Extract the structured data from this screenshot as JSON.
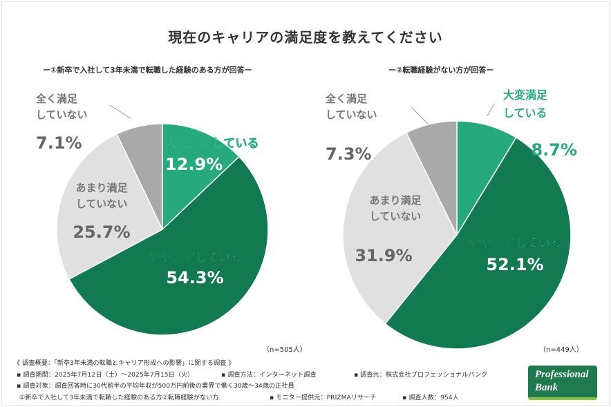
{
  "title": "現在のキャリアの満足度を教えてください",
  "colors": {
    "very_satisfied": "#27a97e",
    "somewhat_satisfied": "#127a51",
    "not_very_satisfied": "#e0e0e0",
    "not_at_all": "#a9a9a9",
    "text_dark": "#333333",
    "text_gray": "#777777",
    "pct_gray": "#666666",
    "accent_green": "#27a97e"
  },
  "chart_data": [
    {
      "type": "pie",
      "subtitle": "ー①新卒で入社して3年未満で転職した経験のある方が回答ー",
      "n_label": "（n=505人）",
      "slices": [
        {
          "key": "very_satisfied",
          "label_lines": [
            "大変満足している"
          ],
          "value": 12.9,
          "display": "12.9%"
        },
        {
          "key": "somewhat_satisfied",
          "label_lines": [
            "やや満足している"
          ],
          "value": 54.3,
          "display": "54.3%"
        },
        {
          "key": "not_very_satisfied",
          "label_lines": [
            "あまり満足",
            "していない"
          ],
          "value": 25.7,
          "display": "25.7%"
        },
        {
          "key": "not_at_all",
          "label_lines": [
            "全く満足",
            "していない"
          ],
          "value": 7.1,
          "display": "7.1%"
        }
      ]
    },
    {
      "type": "pie",
      "subtitle": "ー②転職経験がない方が回答ー",
      "n_label": "（n=449人）",
      "slices": [
        {
          "key": "very_satisfied",
          "label_lines": [
            "大変満足",
            "している"
          ],
          "value": 8.7,
          "display": "8.7%"
        },
        {
          "key": "somewhat_satisfied",
          "label_lines": [
            "やや満足している"
          ],
          "value": 52.1,
          "display": "52.1%"
        },
        {
          "key": "not_very_satisfied",
          "label_lines": [
            "あまり満足",
            "していない"
          ],
          "value": 31.9,
          "display": "31.9%"
        },
        {
          "key": "not_at_all",
          "label_lines": [
            "全く満足",
            "していない"
          ],
          "value": 7.3,
          "display": "7.3%"
        }
      ]
    }
  ],
  "footer": {
    "summary": "《 調査概要：「新卒3年未満の転職とキャリア形成への影響」に関する調査 》",
    "period": "▪ 調査期間：2025年7月12日（土）〜2025年7月15日（火）",
    "method": "▪ 調査方法：インターネット調査",
    "source": "▪ 調査元：株式会社プロフェッショナルバンク",
    "target": "▪ 調査対象：調査回答時に30代前半の平均年収が500万円前後の業界で働く30歳〜34歳の正社員",
    "groups": "①新卒で入社して3年未満で転職した経験のある方②転職経験がない方",
    "monitor": "▪ モニター提供元：PRIZMAリサーチ",
    "count": "▪ 調査人数：954人"
  },
  "logo": {
    "line1": "Professional",
    "line2": "Bank"
  }
}
